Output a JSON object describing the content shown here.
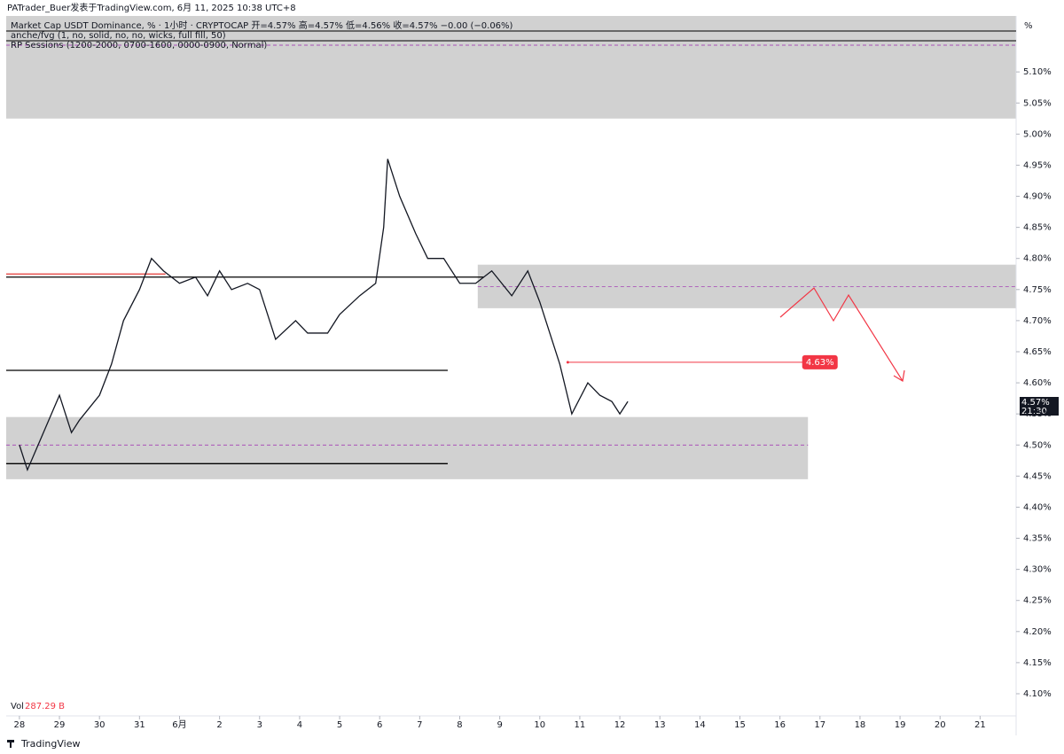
{
  "header": {
    "attribution": "PATrader_Buer发表于TradingView.com,  6月 11, 2025 10:38 UTC+8",
    "legend_lines": [
      "Market Cap USDT Dominance, % · 1小时 · CRYPTOCAP  开=4.57%  高=4.57%  低=4.56%  收=4.57%  −0.00 (−0.06%)",
      "anche/fvg (1, no, solid, no, no, wicks, full fill, 50)",
      "RP Sessions (1200-2000, 0700-1600, 0000-0900, Normal)"
    ],
    "axis_unit": "%",
    "volume_label": "Vol",
    "volume_value": "287.29 B",
    "last_price": "4.57%",
    "countdown": "21:30",
    "brand": "TradingView"
  },
  "chart_data": {
    "type": "line",
    "xlim": [
      -0.33,
      24.9
    ],
    "xticks": [
      {
        "value": 0,
        "label": "28"
      },
      {
        "value": 1,
        "label": "29"
      },
      {
        "value": 2,
        "label": "30"
      },
      {
        "value": 3,
        "label": "31"
      },
      {
        "value": 4,
        "label": "6月"
      },
      {
        "value": 5,
        "label": "2"
      },
      {
        "value": 6,
        "label": "3"
      },
      {
        "value": 7,
        "label": "4"
      },
      {
        "value": 8,
        "label": "5"
      },
      {
        "value": 9,
        "label": "6"
      },
      {
        "value": 10,
        "label": "7"
      },
      {
        "value": 11,
        "label": "8"
      },
      {
        "value": 12,
        "label": "9"
      },
      {
        "value": 13,
        "label": "10"
      },
      {
        "value": 14,
        "label": "11"
      },
      {
        "value": 15,
        "label": "12"
      },
      {
        "value": 16,
        "label": "13"
      },
      {
        "value": 17,
        "label": "14"
      },
      {
        "value": 18,
        "label": "15"
      },
      {
        "value": 19,
        "label": "16"
      },
      {
        "value": 20,
        "label": "17"
      },
      {
        "value": 21,
        "label": "18"
      },
      {
        "value": 22,
        "label": "19"
      },
      {
        "value": 23,
        "label": "20"
      },
      {
        "value": 24,
        "label": "21"
      }
    ],
    "ylim": [
      4.09,
      5.19
    ],
    "yticks": [
      {
        "value": 4.1,
        "label": "4.10%"
      },
      {
        "value": 4.15,
        "label": "4.15%"
      },
      {
        "value": 4.2,
        "label": "4.20%"
      },
      {
        "value": 4.25,
        "label": "4.25%"
      },
      {
        "value": 4.3,
        "label": "4.30%"
      },
      {
        "value": 4.35,
        "label": "4.35%"
      },
      {
        "value": 4.4,
        "label": "4.40%"
      },
      {
        "value": 4.45,
        "label": "4.45%"
      },
      {
        "value": 4.5,
        "label": "4.50%"
      },
      {
        "value": 4.55,
        "label": "4.55%"
      },
      {
        "value": 4.6,
        "label": "4.60%"
      },
      {
        "value": 4.65,
        "label": "4.65%"
      },
      {
        "value": 4.7,
        "label": "4.70%"
      },
      {
        "value": 4.75,
        "label": "4.75%"
      },
      {
        "value": 4.8,
        "label": "4.80%"
      },
      {
        "value": 4.85,
        "label": "4.85%"
      },
      {
        "value": 4.9,
        "label": "4.90%"
      },
      {
        "value": 4.95,
        "label": "4.95%"
      },
      {
        "value": 5.0,
        "label": "5.00%"
      },
      {
        "value": 5.05,
        "label": "5.05%"
      },
      {
        "value": 5.1,
        "label": "5.10%"
      }
    ],
    "series": [
      {
        "name": "USDT Dominance",
        "color": "#131722",
        "x": [
          0,
          0.2,
          0.6,
          1.0,
          1.3,
          1.5,
          2.0,
          2.3,
          2.6,
          3.0,
          3.3,
          3.6,
          4.0,
          4.4,
          4.7,
          5.0,
          5.3,
          5.7,
          6.0,
          6.4,
          6.9,
          7.2,
          7.7,
          8.0,
          8.5,
          8.9,
          9.1,
          9.2,
          9.5,
          9.9,
          10.2,
          10.6,
          11.0,
          11.4,
          11.8,
          12.3,
          12.7,
          13.0,
          13.5,
          13.8,
          14.2,
          14.5,
          14.8,
          15.0,
          15.2
        ],
        "values": [
          4.5,
          4.46,
          4.52,
          4.58,
          4.52,
          4.54,
          4.58,
          4.63,
          4.7,
          4.75,
          4.8,
          4.78,
          4.76,
          4.77,
          4.74,
          4.78,
          4.75,
          4.76,
          4.75,
          4.67,
          4.7,
          4.68,
          4.68,
          4.71,
          4.74,
          4.76,
          4.85,
          4.96,
          4.9,
          4.84,
          4.8,
          4.8,
          4.76,
          4.76,
          4.78,
          4.74,
          4.78,
          4.73,
          4.63,
          4.55,
          4.6,
          4.58,
          4.57,
          4.55,
          4.57
        ]
      }
    ],
    "zones": [
      {
        "x0": -0.33,
        "x1": 24.9,
        "low": 5.025,
        "high": 5.19,
        "color": "#d1d1d1"
      },
      {
        "x0": 11.45,
        "x1": 24.9,
        "low": 4.72,
        "high": 4.79,
        "mid": 4.755,
        "color": "#d1d1d1"
      },
      {
        "x0": -0.33,
        "x1": 19.7,
        "low": 4.445,
        "high": 4.545,
        "mid": 4.5,
        "color": "#d1d1d1"
      }
    ],
    "levels": [
      {
        "value": 4.77,
        "x0": -0.33,
        "x1": 11.6,
        "color": "#000000"
      },
      {
        "value": 4.62,
        "x0": -0.33,
        "x1": 10.7,
        "color": "#000000"
      },
      {
        "value": 4.47,
        "x0": -0.33,
        "x1": 10.7,
        "color": "#000000"
      },
      {
        "value": 4.775,
        "x0": -0.33,
        "x1": 3.65,
        "color": "#e53935"
      }
    ],
    "annotation": {
      "value": 4.633,
      "label": "4.63%",
      "x0": 13.7,
      "x1": 19.6,
      "color": "#f23645"
    }
  }
}
